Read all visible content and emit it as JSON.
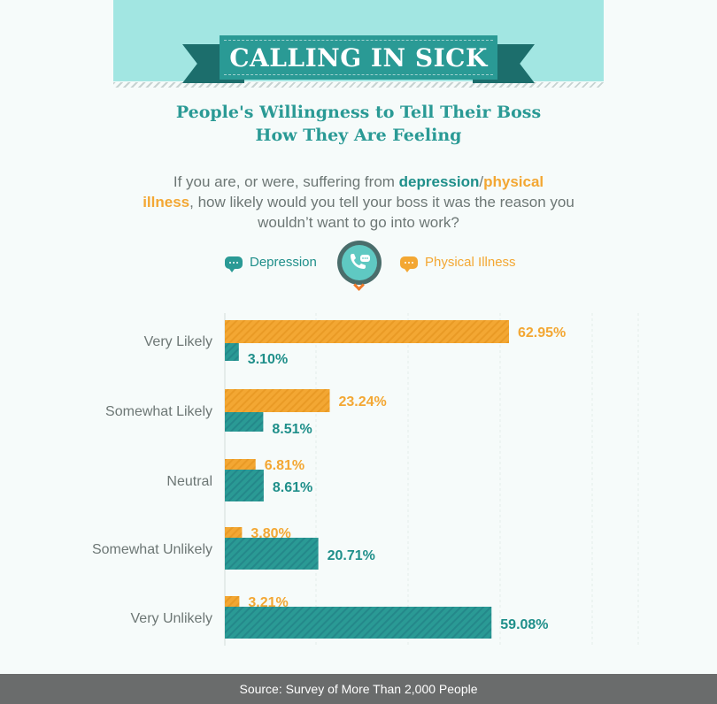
{
  "header": {
    "title": "CALLING IN SICK",
    "subtitle_line1": "People's Willingness to Tell Their Boss",
    "subtitle_line2": "How They Are Feeling"
  },
  "question": {
    "part1": "If you are, or were, suffering from ",
    "depression": "depression",
    "slash": "/",
    "physical": "physical",
    "illness": "illness",
    "part2": ", how likely would you  tell your boss it was the reason you wouldn’t want to go into work?"
  },
  "legend": {
    "depression": "Depression",
    "physical": "Physical Illness"
  },
  "colors": {
    "depression": "#2a9a95",
    "physical": "#f3a733",
    "depression_text": "#1f8f8a",
    "physical_text": "#f3a733",
    "label": "#6d7775"
  },
  "icons": {
    "depression_legend": "chat-bubble-icon",
    "physical_legend": "chat-bubble-icon",
    "center": "phone-chat-icon",
    "pointer": "chevron-down-icon"
  },
  "chart_data": {
    "type": "bar",
    "orientation": "horizontal",
    "categories": [
      "Very Likely",
      "Somewhat Likely",
      "Neutral",
      "Somewhat Unlikely",
      "Very Unlikely"
    ],
    "series": [
      {
        "name": "Physical Illness",
        "values": [
          62.95,
          23.24,
          6.81,
          3.8,
          3.21
        ],
        "labels": [
          "62.95%",
          "23.24%",
          "6.81%",
          "3.80%",
          "3.21%"
        ]
      },
      {
        "name": "Depression",
        "values": [
          3.1,
          8.51,
          8.61,
          20.71,
          59.08
        ],
        "labels": [
          "3.10%",
          "8.51%",
          "8.61%",
          "20.71%",
          "59.08%"
        ]
      }
    ],
    "xlim": [
      0,
      100
    ],
    "grid": true,
    "legend_position": "top"
  },
  "footer": {
    "source": "Source: Survey of More Than 2,000 People"
  }
}
